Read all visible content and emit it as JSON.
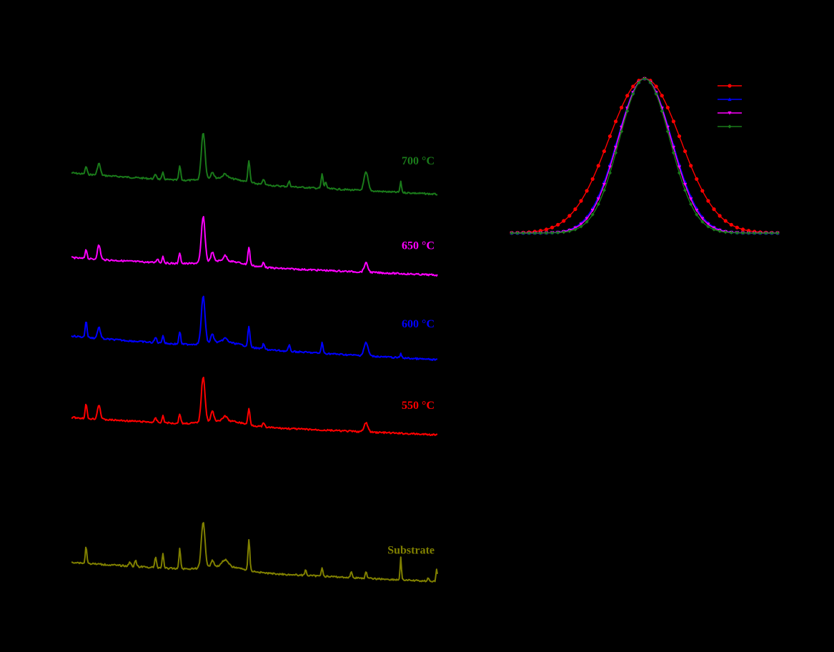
{
  "chart_data": [
    {
      "type": "line",
      "panel": "left",
      "xlabel": "",
      "ylabel": "",
      "stacked": true,
      "series": [
        {
          "name": "700 °C",
          "color": "#1a7a1a",
          "baseline": 0.265,
          "tail_drop": 0.033,
          "peaks": [
            {
              "pos": 0.04,
              "h": 0.012,
              "w": 0.0025
            },
            {
              "pos": 0.075,
              "h": 0.018,
              "w": 0.004
            },
            {
              "pos": 0.23,
              "h": 0.007,
              "w": 0.003
            },
            {
              "pos": 0.25,
              "h": 0.01,
              "w": 0.0025
            },
            {
              "pos": 0.296,
              "h": 0.022,
              "w": 0.0025
            },
            {
              "pos": 0.36,
              "h": 0.072,
              "w": 0.005
            },
            {
              "pos": 0.385,
              "h": 0.01,
              "w": 0.004
            },
            {
              "pos": 0.42,
              "h": 0.006,
              "w": 0.006
            },
            {
              "pos": 0.485,
              "h": 0.032,
              "w": 0.0028
            },
            {
              "pos": 0.525,
              "h": 0.009,
              "w": 0.0025
            },
            {
              "pos": 0.595,
              "h": 0.008,
              "w": 0.0025
            },
            {
              "pos": 0.685,
              "h": 0.022,
              "w": 0.0025
            },
            {
              "pos": 0.695,
              "h": 0.01,
              "w": 0.0025
            },
            {
              "pos": 0.805,
              "h": 0.028,
              "w": 0.0055
            },
            {
              "pos": 0.9,
              "h": 0.016,
              "w": 0.0022
            }
          ]
        },
        {
          "name": "650 °C",
          "color": "#ff00ff",
          "baseline": 0.395,
          "tail_drop": 0.027,
          "peaks": [
            {
              "pos": 0.04,
              "h": 0.015,
              "w": 0.0025
            },
            {
              "pos": 0.075,
              "h": 0.022,
              "w": 0.004
            },
            {
              "pos": 0.235,
              "h": 0.006,
              "w": 0.003
            },
            {
              "pos": 0.25,
              "h": 0.01,
              "w": 0.0025
            },
            {
              "pos": 0.296,
              "h": 0.017,
              "w": 0.0025
            },
            {
              "pos": 0.36,
              "h": 0.07,
              "w": 0.005
            },
            {
              "pos": 0.385,
              "h": 0.014,
              "w": 0.004
            },
            {
              "pos": 0.42,
              "h": 0.008,
              "w": 0.005
            },
            {
              "pos": 0.485,
              "h": 0.027,
              "w": 0.0028
            },
            {
              "pos": 0.525,
              "h": 0.008,
              "w": 0.0025
            },
            {
              "pos": 0.805,
              "h": 0.014,
              "w": 0.005
            }
          ]
        },
        {
          "name": "600 °C",
          "color": "#0000ff",
          "baseline": 0.515,
          "tail_drop": 0.037,
          "peaks": [
            {
              "pos": 0.04,
              "h": 0.025,
              "w": 0.0025
            },
            {
              "pos": 0.075,
              "h": 0.017,
              "w": 0.004
            },
            {
              "pos": 0.23,
              "h": 0.008,
              "w": 0.003
            },
            {
              "pos": 0.25,
              "h": 0.012,
              "w": 0.0025
            },
            {
              "pos": 0.296,
              "h": 0.019,
              "w": 0.0025
            },
            {
              "pos": 0.36,
              "h": 0.072,
              "w": 0.005
            },
            {
              "pos": 0.385,
              "h": 0.013,
              "w": 0.004
            },
            {
              "pos": 0.42,
              "h": 0.006,
              "w": 0.006
            },
            {
              "pos": 0.485,
              "h": 0.031,
              "w": 0.0028
            },
            {
              "pos": 0.525,
              "h": 0.008,
              "w": 0.0025
            },
            {
              "pos": 0.595,
              "h": 0.009,
              "w": 0.0025
            },
            {
              "pos": 0.685,
              "h": 0.016,
              "w": 0.0025
            },
            {
              "pos": 0.805,
              "h": 0.02,
              "w": 0.0055
            },
            {
              "pos": 0.9,
              "h": 0.006,
              "w": 0.0022
            }
          ]
        },
        {
          "name": "550 °C",
          "color": "#ff0000",
          "baseline": 0.64,
          "tail_drop": 0.027,
          "peaks": [
            {
              "pos": 0.04,
              "h": 0.022,
              "w": 0.0025
            },
            {
              "pos": 0.075,
              "h": 0.022,
              "w": 0.004
            },
            {
              "pos": 0.23,
              "h": 0.006,
              "w": 0.003
            },
            {
              "pos": 0.25,
              "h": 0.01,
              "w": 0.0025
            },
            {
              "pos": 0.296,
              "h": 0.015,
              "w": 0.0025
            },
            {
              "pos": 0.36,
              "h": 0.07,
              "w": 0.005
            },
            {
              "pos": 0.385,
              "h": 0.015,
              "w": 0.004
            },
            {
              "pos": 0.42,
              "h": 0.007,
              "w": 0.005
            },
            {
              "pos": 0.485,
              "h": 0.024,
              "w": 0.0028
            },
            {
              "pos": 0.525,
              "h": 0.006,
              "w": 0.0025
            },
            {
              "pos": 0.805,
              "h": 0.014,
              "w": 0.005
            }
          ]
        },
        {
          "name": "Substrate",
          "color": "#808000",
          "baseline": 0.862,
          "tail_drop": 0.03,
          "peaks": [
            {
              "pos": 0.04,
              "h": 0.027,
              "w": 0.002
            },
            {
              "pos": 0.16,
              "h": 0.006,
              "w": 0.003
            },
            {
              "pos": 0.175,
              "h": 0.01,
              "w": 0.0022
            },
            {
              "pos": 0.23,
              "h": 0.015,
              "w": 0.0025
            },
            {
              "pos": 0.25,
              "h": 0.023,
              "w": 0.0022
            },
            {
              "pos": 0.296,
              "h": 0.032,
              "w": 0.0022
            },
            {
              "pos": 0.36,
              "h": 0.07,
              "w": 0.005
            },
            {
              "pos": 0.385,
              "h": 0.01,
              "w": 0.004
            },
            {
              "pos": 0.42,
              "h": 0.01,
              "w": 0.008
            },
            {
              "pos": 0.485,
              "h": 0.046,
              "w": 0.0025
            },
            {
              "pos": 0.64,
              "h": 0.009,
              "w": 0.0022
            },
            {
              "pos": 0.685,
              "h": 0.014,
              "w": 0.0022
            },
            {
              "pos": 0.765,
              "h": 0.01,
              "w": 0.002
            },
            {
              "pos": 0.805,
              "h": 0.011,
              "w": 0.002
            },
            {
              "pos": 0.9,
              "h": 0.035,
              "w": 0.0018
            },
            {
              "pos": 0.975,
              "h": 0.006,
              "w": 0.002
            },
            {
              "pos": 0.998,
              "h": 0.02,
              "w": 0.0018
            }
          ]
        }
      ]
    },
    {
      "type": "line",
      "panel": "right",
      "xlabel": "",
      "ylabel": "",
      "legend": "top-right",
      "x_range": [
        -1,
        1
      ],
      "y_range": [
        0,
        1
      ],
      "series": [
        {
          "name": "",
          "color": "#ff0000",
          "marker": "circle",
          "center": 0,
          "sigma": 0.27
        },
        {
          "name": "",
          "color": "#0000ff",
          "marker": "triangle",
          "center": 0,
          "sigma": 0.205
        },
        {
          "name": "",
          "color": "#ff00ff",
          "marker": "triangle-down",
          "center": 0,
          "sigma": 0.2
        },
        {
          "name": "",
          "color": "#1a7a1a",
          "marker": "diamond",
          "center": 0,
          "sigma": 0.19
        }
      ]
    }
  ]
}
